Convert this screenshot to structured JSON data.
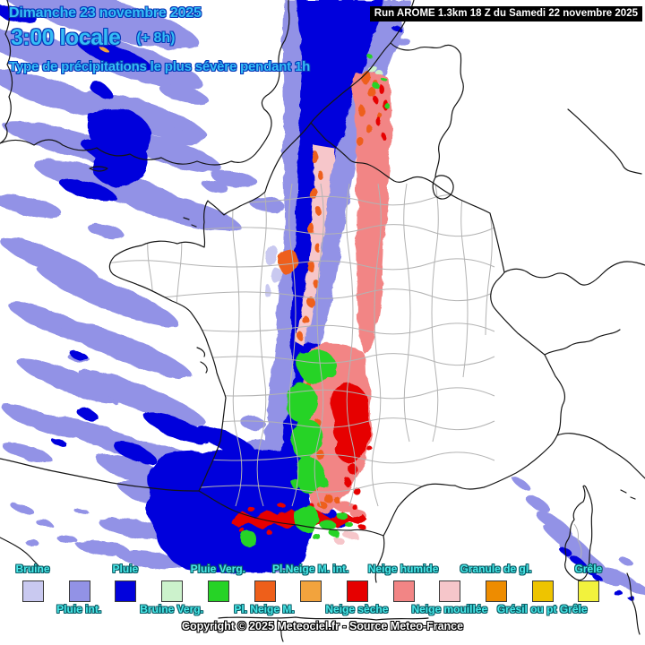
{
  "header": {
    "date_line": "Dimanche 23 novembre 2025",
    "time_line": "3:00 locale",
    "offset_label": "(+ 8h)",
    "subtitle": "Type de précipitations le plus sévère pendant 1h",
    "run_label": "Run AROME 1.3km 18 Z du Samedi 22 novembre 2025"
  },
  "footer": {
    "copyright": "Copyright © 2025 Meteociel.fr - Source Meteo-France"
  },
  "colors": {
    "bruine": "#c9c9f0",
    "pluie_int": "#9292e6",
    "pluie": "#0202dc",
    "bruine_verg": "#ccf2cc",
    "pluie_verg": "#26d326",
    "pl_neige_m": "#ee5f1a",
    "pl_neige_m_int": "#f2a33d",
    "neige_seche": "#e60000",
    "neige_humide": "#f28585",
    "neige_mouillee": "#f6c6ca",
    "granule": "#ee8c00",
    "gresil": "#eec400",
    "grele": "#f2f23d"
  },
  "legend": {
    "items": [
      {
        "label": "Bruine",
        "color_key": "bruine",
        "row": "top"
      },
      {
        "label": "Pluie int.",
        "color_key": "pluie_int",
        "row": "bottom"
      },
      {
        "label": "Pluie",
        "color_key": "pluie",
        "row": "top"
      },
      {
        "label": "Bruine Verg.",
        "color_key": "bruine_verg",
        "row": "bottom"
      },
      {
        "label": "Pluie Verg.",
        "color_key": "pluie_verg",
        "row": "top"
      },
      {
        "label": "Pl. Neige M.",
        "color_key": "pl_neige_m",
        "row": "bottom"
      },
      {
        "label": "Pl.Neige M. int.",
        "color_key": "pl_neige_m_int",
        "row": "top"
      },
      {
        "label": "Neige sèche",
        "color_key": "neige_seche",
        "row": "bottom"
      },
      {
        "label": "Neige humide",
        "color_key": "neige_humide",
        "row": "top"
      },
      {
        "label": "Neige mouillée",
        "color_key": "neige_mouillee",
        "row": "bottom"
      },
      {
        "label": "Granule de gl.",
        "color_key": "granule",
        "row": "top"
      },
      {
        "label": "Grésil ou pt Grêle",
        "color_key": "gresil",
        "row": "bottom"
      },
      {
        "label": "Grêle",
        "color_key": "grele",
        "row": "top"
      }
    ]
  }
}
